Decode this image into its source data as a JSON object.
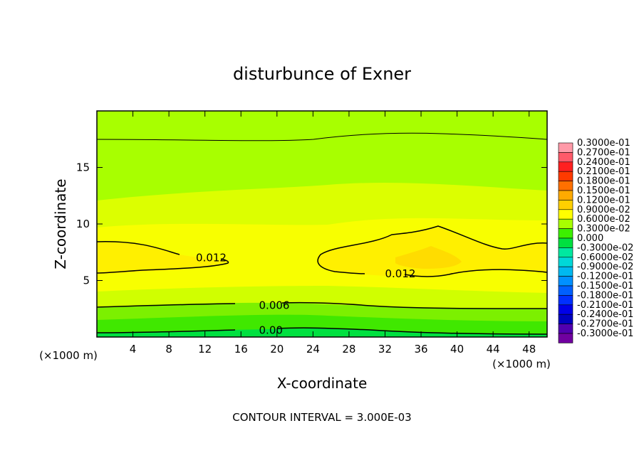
{
  "chart_data": {
    "type": "heatmap",
    "title": "disturbunce of Exner",
    "xlabel": "X-coordinate",
    "ylabel": "Z-coordinate",
    "x_unit": "(×1000 m)",
    "y_unit": "(×1000 m)",
    "xlim": [
      0,
      50
    ],
    "ylim": [
      0,
      20
    ],
    "x_ticks": [
      4,
      8,
      12,
      16,
      20,
      24,
      28,
      32,
      36,
      40,
      44,
      48
    ],
    "y_ticks": [
      5,
      10,
      15
    ],
    "contour_interval_text": "CONTOUR INTERVAL = 3.000E-03",
    "contour_labels": [
      {
        "text": "0.012",
        "x": 11,
        "y": 7.0
      },
      {
        "text": "0.012",
        "x": 32,
        "y": 5.6
      },
      {
        "text": "0.006",
        "x": 18,
        "y": 2.8
      },
      {
        "text": "0.00",
        "x": 18,
        "y": 0.6
      }
    ],
    "colorbar": {
      "levels": [
        "0.3000e-01",
        "0.2700e-01",
        "0.2400e-01",
        "0.2100e-01",
        "0.1800e-01",
        "0.1500e-01",
        "0.1200e-01",
        "0.9000e-02",
        "0.6000e-02",
        "0.3000e-02",
        "0.000",
        "-0.3000e-02",
        "-0.6000e-02",
        "-0.9000e-02",
        "-0.1200e-01",
        "-0.1500e-01",
        "-0.1800e-01",
        "-0.2100e-01",
        "-0.2400e-01",
        "-0.2700e-01",
        "-0.3000e-01"
      ],
      "colors": [
        "#ff9aa8",
        "#ff5a6a",
        "#ff2020",
        "#ff3a00",
        "#ff7000",
        "#ffaa00",
        "#ffd000",
        "#ffff00",
        "#a8ff00",
        "#3cf000",
        "#00e040",
        "#00e8a0",
        "#00d8d8",
        "#00b8f0",
        "#0090ff",
        "#0060ff",
        "#0030ff",
        "#0000e8",
        "#0000c0",
        "#5000b0",
        "#7000a0"
      ]
    },
    "grid": false,
    "legend_position": "right"
  }
}
